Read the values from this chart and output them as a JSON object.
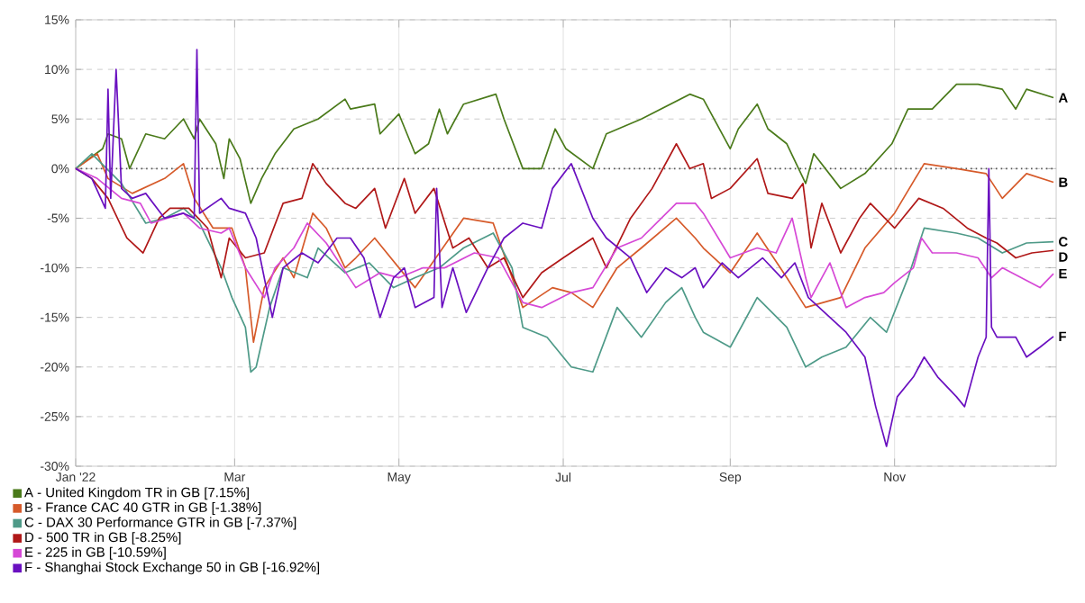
{
  "chart_data": {
    "type": "line",
    "xlim": [
      "2022-01-01",
      "2022-12-31"
    ],
    "xticks": [
      {
        "value": "2022-01-01",
        "label": "Jan '22"
      },
      {
        "value": "2022-03-01",
        "label": "Mar"
      },
      {
        "value": "2022-05-01",
        "label": "May"
      },
      {
        "value": "2022-07-01",
        "label": "Jul"
      },
      {
        "value": "2022-09-01",
        "label": "Sep"
      },
      {
        "value": "2022-11-01",
        "label": "Nov"
      }
    ],
    "ylim": [
      -30,
      15
    ],
    "yticks": [
      {
        "value": -30,
        "label": "-30%"
      },
      {
        "value": -25,
        "label": "-25%"
      },
      {
        "value": -20,
        "label": "-20%"
      },
      {
        "value": -15,
        "label": "-15%"
      },
      {
        "value": -10,
        "label": "-10%"
      },
      {
        "value": -5,
        "label": "-5%"
      },
      {
        "value": 0,
        "label": "0%"
      },
      {
        "value": 5,
        "label": "5%"
      },
      {
        "value": 10,
        "label": "10%"
      },
      {
        "value": 15,
        "label": "15%"
      }
    ],
    "grid": true,
    "legend": "bottom left",
    "ref_lines": [
      {
        "axis": "y",
        "value": 0,
        "color": "#555555",
        "line_style": "dotted"
      }
    ],
    "annotations": [
      {
        "text": "A",
        "x": "2022-12-30",
        "y": 7.15
      },
      {
        "text": "B",
        "x": "2022-12-30",
        "y": -1.38
      },
      {
        "text": "C",
        "x": "2022-12-30",
        "y": -7.37
      },
      {
        "text": "D",
        "x": "2022-12-30",
        "y": -8.25
      },
      {
        "text": "E",
        "x": "2022-12-30",
        "y": -10.59
      },
      {
        "text": "F",
        "x": "2022-12-30",
        "y": -16.92
      }
    ],
    "series": [
      {
        "name": "A - United Kingdom TR in GB [7.15%]",
        "color": "#4a7a1a",
        "x": [
          "2022-01-01",
          "2022-01-11",
          "2022-01-13",
          "2022-01-18",
          "2022-01-21",
          "2022-01-27",
          "2022-02-03",
          "2022-02-10",
          "2022-02-14",
          "2022-02-16",
          "2022-02-22",
          "2022-02-25",
          "2022-02-27",
          "2022-03-03",
          "2022-03-07",
          "2022-03-11",
          "2022-03-16",
          "2022-03-23",
          "2022-04-01",
          "2022-04-11",
          "2022-04-13",
          "2022-04-22",
          "2022-04-24",
          "2022-05-01",
          "2022-05-07",
          "2022-05-12",
          "2022-05-16",
          "2022-05-19",
          "2022-05-25",
          "2022-06-06",
          "2022-06-09",
          "2022-06-16",
          "2022-06-23",
          "2022-06-28",
          "2022-07-02",
          "2022-07-12",
          "2022-07-17",
          "2022-07-30",
          "2022-08-17",
          "2022-08-22",
          "2022-09-01",
          "2022-09-04",
          "2022-09-11",
          "2022-09-15",
          "2022-09-22",
          "2022-09-29",
          "2022-10-02",
          "2022-10-12",
          "2022-10-21",
          "2022-10-31",
          "2022-11-06",
          "2022-11-15",
          "2022-11-24",
          "2022-12-02",
          "2022-12-11",
          "2022-12-16",
          "2022-12-20",
          "2022-12-30"
        ],
        "values": [
          0,
          2,
          3.5,
          3,
          0,
          3.5,
          3,
          5,
          3,
          5,
          2.5,
          -1,
          3,
          1,
          -3.5,
          -1,
          1.5,
          4,
          5,
          7,
          6,
          6.5,
          3.5,
          5.5,
          1.5,
          2.5,
          6,
          3.5,
          6.5,
          7.5,
          5,
          0,
          0,
          4,
          2,
          0,
          3.5,
          5,
          7.5,
          7,
          2,
          4,
          6.5,
          4,
          2.5,
          -1.5,
          1.5,
          -2,
          -0.5,
          2.5,
          6,
          6,
          8.5,
          8.5,
          8,
          6,
          8,
          7.15
        ]
      },
      {
        "name": "B - France CAC 40 GTR in GB [-1.38%]",
        "color": "#d65a2a",
        "x": [
          "2022-01-01",
          "2022-01-09",
          "2022-01-13",
          "2022-01-22",
          "2022-02-03",
          "2022-02-10",
          "2022-02-14",
          "2022-02-21",
          "2022-02-28",
          "2022-03-05",
          "2022-03-08",
          "2022-03-12",
          "2022-03-19",
          "2022-03-23",
          "2022-03-30",
          "2022-04-04",
          "2022-04-11",
          "2022-04-15",
          "2022-04-22",
          "2022-05-07",
          "2022-05-25",
          "2022-06-05",
          "2022-06-12",
          "2022-06-16",
          "2022-06-27",
          "2022-07-04",
          "2022-07-12",
          "2022-07-21",
          "2022-07-30",
          "2022-08-12",
          "2022-08-19",
          "2022-08-22",
          "2022-09-01",
          "2022-09-11",
          "2022-09-22",
          "2022-09-29",
          "2022-10-12",
          "2022-10-21",
          "2022-11-01",
          "2022-11-12",
          "2022-11-24",
          "2022-12-05",
          "2022-12-11",
          "2022-12-20",
          "2022-12-30"
        ],
        "values": [
          0,
          1.5,
          -1,
          -2.5,
          -1,
          0.5,
          -3,
          -6,
          -6,
          -10,
          -17.5,
          -12,
          -9,
          -11,
          -4.5,
          -6,
          -10,
          -9,
          -7,
          -12,
          -5,
          -5.5,
          -11,
          -14,
          -12,
          -12.5,
          -14,
          -10,
          -8,
          -5,
          -7,
          -8,
          -10.5,
          -6.5,
          -11,
          -14,
          -13,
          -8,
          -4.5,
          0.5,
          0,
          -0.5,
          -3,
          -0.5,
          -1.38
        ]
      },
      {
        "name": "C - DAX 30 Performance GTR in GB [-7.37%]",
        "color": "#4e9a88",
        "x": [
          "2022-01-01",
          "2022-01-07",
          "2022-01-18",
          "2022-01-27",
          "2022-02-03",
          "2022-02-10",
          "2022-02-16",
          "2022-02-24",
          "2022-02-28",
          "2022-03-05",
          "2022-03-07",
          "2022-03-09",
          "2022-03-14",
          "2022-03-19",
          "2022-03-28",
          "2022-04-01",
          "2022-04-11",
          "2022-04-20",
          "2022-04-29",
          "2022-05-07",
          "2022-05-16",
          "2022-05-25",
          "2022-06-05",
          "2022-06-12",
          "2022-06-16",
          "2022-06-25",
          "2022-07-04",
          "2022-07-12",
          "2022-07-21",
          "2022-07-30",
          "2022-08-08",
          "2022-08-14",
          "2022-08-19",
          "2022-08-22",
          "2022-09-01",
          "2022-09-11",
          "2022-09-22",
          "2022-09-29",
          "2022-10-05",
          "2022-10-14",
          "2022-10-23",
          "2022-10-29",
          "2022-11-06",
          "2022-11-12",
          "2022-11-24",
          "2022-12-02",
          "2022-12-11",
          "2022-12-20",
          "2022-12-30"
        ],
        "values": [
          0,
          1.5,
          -1.5,
          -5.5,
          -5,
          -4,
          -5.5,
          -10,
          -13,
          -16,
          -20.5,
          -20,
          -14,
          -10,
          -11,
          -8,
          -10.5,
          -9.5,
          -12,
          -11,
          -10,
          -8,
          -6.5,
          -10,
          -16,
          -17,
          -20,
          -20.5,
          -14,
          -17,
          -13.5,
          -12,
          -15,
          -16.5,
          -18,
          -13,
          -16,
          -20,
          -19,
          -18,
          -15,
          -16.5,
          -11,
          -6,
          -6.5,
          -7,
          -8.5,
          -7.5,
          -7.37
        ]
      },
      {
        "name": "D - 500 TR in GB [-8.25%]",
        "color": "#b01818",
        "x": [
          "2022-01-01",
          "2022-01-07",
          "2022-01-13",
          "2022-01-20",
          "2022-01-26",
          "2022-02-01",
          "2022-02-05",
          "2022-02-12",
          "2022-02-19",
          "2022-02-24",
          "2022-02-27",
          "2022-03-05",
          "2022-03-12",
          "2022-03-19",
          "2022-03-26",
          "2022-03-30",
          "2022-04-04",
          "2022-04-11",
          "2022-04-15",
          "2022-04-22",
          "2022-04-26",
          "2022-05-03",
          "2022-05-07",
          "2022-05-14",
          "2022-05-21",
          "2022-05-27",
          "2022-06-03",
          "2022-06-09",
          "2022-06-16",
          "2022-06-23",
          "2022-07-01",
          "2022-07-12",
          "2022-07-17",
          "2022-07-26",
          "2022-08-03",
          "2022-08-12",
          "2022-08-17",
          "2022-08-22",
          "2022-08-25",
          "2022-09-01",
          "2022-09-11",
          "2022-09-15",
          "2022-09-24",
          "2022-09-28",
          "2022-10-01",
          "2022-10-05",
          "2022-10-12",
          "2022-10-19",
          "2022-10-23",
          "2022-11-01",
          "2022-11-10",
          "2022-11-19",
          "2022-11-28",
          "2022-12-05",
          "2022-12-09",
          "2022-12-16",
          "2022-12-22",
          "2022-12-30"
        ],
        "values": [
          0,
          -1,
          -3,
          -7,
          -8.5,
          -5,
          -4,
          -4,
          -6,
          -11,
          -7,
          -9,
          -8.5,
          -3.5,
          -3,
          0.5,
          -1.5,
          -3.5,
          -4,
          -2,
          -6,
          -1,
          -4.5,
          -2,
          -8,
          -7,
          -10,
          -9,
          -13,
          -10.5,
          -9,
          -7,
          -10,
          -5,
          -2,
          2.5,
          0,
          0.5,
          -3,
          -2,
          1,
          -2.5,
          -3,
          -1.5,
          -8,
          -3.5,
          -8.5,
          -5,
          -3.5,
          -6,
          -3,
          -4,
          -6,
          -7,
          -7.5,
          -9,
          -8.5,
          -8.25
        ]
      },
      {
        "name": "E - 225 in GB [-10.59%]",
        "color": "#d648d6",
        "x": [
          "2022-01-01",
          "2022-01-09",
          "2022-01-18",
          "2022-01-25",
          "2022-01-29",
          "2022-02-04",
          "2022-02-10",
          "2022-02-16",
          "2022-02-24",
          "2022-02-27",
          "2022-03-05",
          "2022-03-12",
          "2022-03-16",
          "2022-03-23",
          "2022-03-28",
          "2022-04-04",
          "2022-04-15",
          "2022-04-24",
          "2022-05-01",
          "2022-05-10",
          "2022-05-18",
          "2022-05-29",
          "2022-06-07",
          "2022-06-16",
          "2022-06-23",
          "2022-07-04",
          "2022-07-12",
          "2022-07-21",
          "2022-07-30",
          "2022-08-12",
          "2022-08-19",
          "2022-08-22",
          "2022-09-01",
          "2022-09-11",
          "2022-09-18",
          "2022-09-24",
          "2022-09-29",
          "2022-10-01",
          "2022-10-08",
          "2022-10-14",
          "2022-10-21",
          "2022-10-28",
          "2022-11-01",
          "2022-11-08",
          "2022-11-11",
          "2022-11-15",
          "2022-11-24",
          "2022-12-02",
          "2022-12-07",
          "2022-12-11",
          "2022-12-18",
          "2022-12-25",
          "2022-12-30"
        ],
        "values": [
          0,
          -1,
          -3,
          -3.5,
          -5.5,
          -5,
          -4.5,
          -6,
          -6.5,
          -6,
          -10,
          -13,
          -10,
          -8,
          -5.5,
          -7.5,
          -12,
          -10.5,
          -11,
          -10,
          -10,
          -8.5,
          -9,
          -13.5,
          -14,
          -12.5,
          -12,
          -8,
          -7,
          -3.5,
          -3.5,
          -4.5,
          -9,
          -8,
          -8.5,
          -5,
          -11,
          -13,
          -9.5,
          -14,
          -13,
          -12.5,
          -11.5,
          -10,
          -7,
          -8.5,
          -8.5,
          -9,
          -11,
          -10,
          -11,
          -12,
          -10.59
        ]
      },
      {
        "name": "F - Shanghai Stock Exchange 50 in GB [-16.92%]",
        "color": "#6a10c0",
        "x": [
          "2022-01-01",
          "2022-01-07",
          "2022-01-12",
          "2022-01-13",
          "2022-01-14",
          "2022-01-16",
          "2022-01-18",
          "2022-01-22",
          "2022-01-27",
          "2022-02-03",
          "2022-02-10",
          "2022-02-14",
          "2022-02-15",
          "2022-02-16",
          "2022-02-24",
          "2022-02-27",
          "2022-03-05",
          "2022-03-09",
          "2022-03-15",
          "2022-03-19",
          "2022-03-26",
          "2022-04-01",
          "2022-04-08",
          "2022-04-13",
          "2022-04-18",
          "2022-04-24",
          "2022-04-29",
          "2022-05-03",
          "2022-05-07",
          "2022-05-14",
          "2022-05-15",
          "2022-05-17",
          "2022-05-21",
          "2022-05-26",
          "2022-06-03",
          "2022-06-09",
          "2022-06-16",
          "2022-06-23",
          "2022-06-27",
          "2022-07-04",
          "2022-07-12",
          "2022-07-17",
          "2022-07-26",
          "2022-08-01",
          "2022-08-08",
          "2022-08-14",
          "2022-08-19",
          "2022-08-22",
          "2022-08-29",
          "2022-09-04",
          "2022-09-13",
          "2022-09-20",
          "2022-09-25",
          "2022-09-30",
          "2022-10-08",
          "2022-10-14",
          "2022-10-21",
          "2022-10-25",
          "2022-10-29",
          "2022-11-02",
          "2022-11-08",
          "2022-11-12",
          "2022-11-17",
          "2022-11-24",
          "2022-11-27",
          "2022-12-02",
          "2022-12-05",
          "2022-12-06",
          "2022-12-07",
          "2022-12-09",
          "2022-12-16",
          "2022-12-20",
          "2022-12-25",
          "2022-12-30"
        ],
        "values": [
          0,
          -1,
          -4,
          8,
          -3,
          10,
          -2,
          -3,
          -2.5,
          -5,
          -4.5,
          -5,
          12,
          -4.5,
          -3,
          -4,
          -4.5,
          -7,
          -15,
          -10,
          -8.5,
          -9.5,
          -7,
          -7,
          -9,
          -15,
          -11,
          -10,
          -14,
          -13,
          -2,
          -14,
          -10,
          -14.5,
          -10,
          -7,
          -5.5,
          -6,
          -2,
          0.5,
          -5,
          -7,
          -9,
          -12.5,
          -10,
          -11,
          -10,
          -12,
          -9.5,
          -11,
          -9,
          -11,
          -9.5,
          -13,
          -15,
          -16.5,
          -19,
          -24,
          -28,
          -23,
          -21,
          -19,
          -21,
          -23,
          -24,
          -19,
          -17,
          0,
          -16,
          -17,
          -17,
          -19,
          -18,
          -16.92
        ]
      }
    ]
  }
}
